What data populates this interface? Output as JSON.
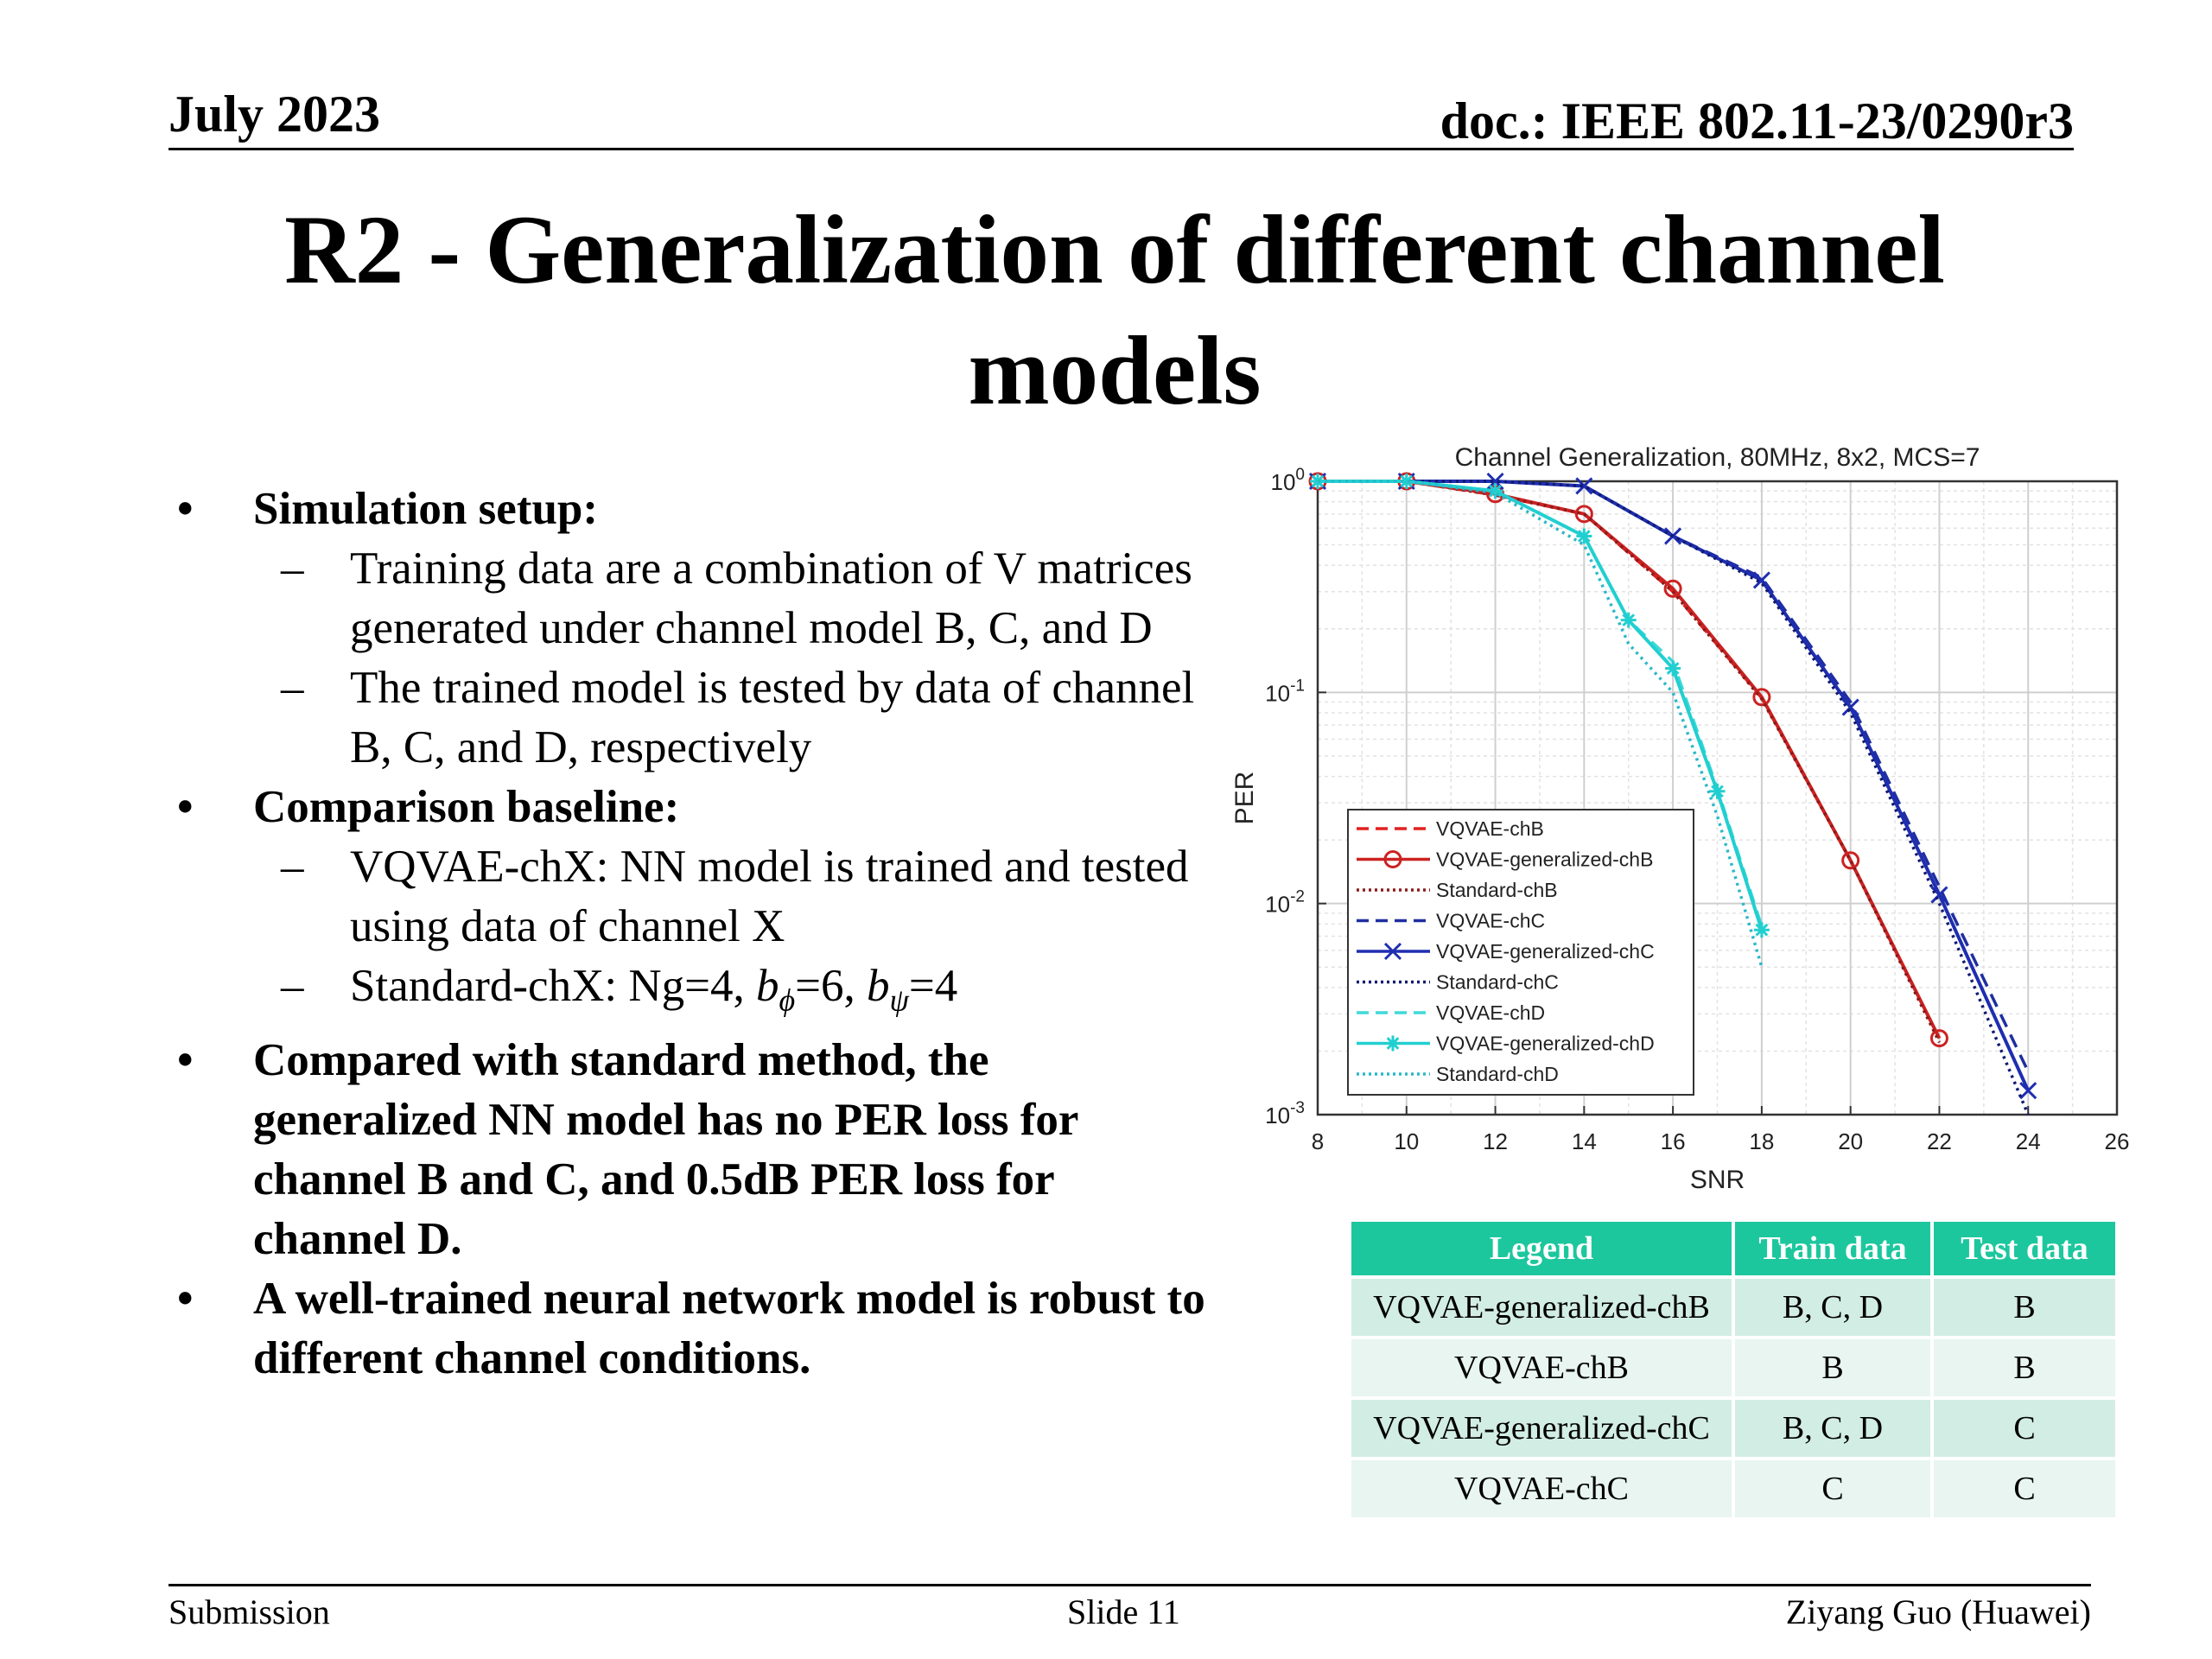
{
  "header": {
    "date": "July 2023",
    "doc": "doc.: IEEE 802.11-23/0290r3"
  },
  "title": "R2 - Generalization of different channel models",
  "bullets": {
    "b1": "Simulation setup:",
    "b1_s1": "Training data are a combination of V matrices generated under channel model B, C, and D",
    "b1_s2": "The trained model is tested by data of channel B, C, and D, respectively",
    "b2": "Comparison baseline:",
    "b2_s1": "VQVAE-chX: NN model is trained and tested using data of channel X",
    "b2_s2_prefix": "Standard-chX: Ng=4,",
    "b2_s2_phi": "=6,",
    "b2_s2_psi": "=4",
    "b3": "Compared with standard method, the generalized NN model has no PER loss for channel B and C, and 0.5dB PER loss for channel D.",
    "b4": "A well-trained neural network model is robust to different channel conditions."
  },
  "chart_data": {
    "type": "line",
    "title": "Channel Generalization, 80MHz, 8x2, MCS=7",
    "xlabel": "SNR",
    "ylabel": "PER",
    "xlim": [
      8,
      26
    ],
    "ylim": [
      0.001,
      1
    ],
    "yscale": "log",
    "xticks": [
      "8",
      "10",
      "12",
      "14",
      "16",
      "18",
      "20",
      "22",
      "24",
      "26"
    ],
    "yticks": [
      {
        "base": "10",
        "exp": "0"
      },
      {
        "base": "10",
        "exp": "-1"
      },
      {
        "base": "10",
        "exp": "-2"
      },
      {
        "base": "10",
        "exp": "-3"
      }
    ],
    "grid": true,
    "legend_position": "bottom-left",
    "series": [
      {
        "name": "VQVAE-chB",
        "color": "#e32020",
        "style": "dashed",
        "marker": "none",
        "x": [
          8,
          10,
          12,
          14,
          16,
          18,
          20,
          22
        ],
        "y": [
          1,
          1,
          0.86,
          0.7,
          0.3,
          0.094,
          0.016,
          0.0023
        ]
      },
      {
        "name": "VQVAE-generalized-chB",
        "color": "#cc2222",
        "style": "solid",
        "marker": "circle",
        "x": [
          8,
          10,
          12,
          14,
          16,
          18,
          20,
          22
        ],
        "y": [
          1,
          1,
          0.87,
          0.7,
          0.31,
          0.095,
          0.016,
          0.0023
        ]
      },
      {
        "name": "Standard-chB",
        "color": "#8b1a1a",
        "style": "dotted",
        "marker": "none",
        "x": [
          8,
          10,
          12,
          14,
          16,
          18,
          20,
          22
        ],
        "y": [
          1,
          1,
          0.86,
          0.7,
          0.3,
          0.093,
          0.016,
          0.0022
        ]
      },
      {
        "name": "VQVAE-chC",
        "color": "#1f2ea0",
        "style": "dashed",
        "marker": "none",
        "x": [
          8,
          10,
          12,
          14,
          16,
          18,
          20,
          22,
          24
        ],
        "y": [
          1,
          1,
          1,
          0.95,
          0.55,
          0.35,
          0.09,
          0.012,
          0.0016
        ]
      },
      {
        "name": "VQVAE-generalized-chC",
        "color": "#1f2eb0",
        "style": "solid",
        "marker": "x",
        "x": [
          8,
          10,
          12,
          14,
          16,
          18,
          20,
          22,
          24
        ],
        "y": [
          1,
          1,
          1,
          0.95,
          0.55,
          0.34,
          0.085,
          0.011,
          0.0013
        ]
      },
      {
        "name": "Standard-chC",
        "color": "#101a70",
        "style": "dotted",
        "marker": "none",
        "x": [
          8,
          10,
          12,
          14,
          16,
          18,
          20,
          22,
          24
        ],
        "y": [
          1,
          1,
          1,
          0.95,
          0.55,
          0.33,
          0.08,
          0.01,
          0.001
        ]
      },
      {
        "name": "VQVAE-chD",
        "color": "#3fd9d9",
        "style": "dashed",
        "marker": "none",
        "x": [
          8,
          10,
          12,
          14,
          15,
          16,
          17,
          18
        ],
        "y": [
          1,
          1,
          0.9,
          0.55,
          0.22,
          0.14,
          0.035,
          0.0078
        ]
      },
      {
        "name": "VQVAE-generalized-chD",
        "color": "#22cfd0",
        "style": "solid",
        "marker": "star",
        "x": [
          8,
          10,
          12,
          14,
          15,
          16,
          17,
          18
        ],
        "y": [
          1,
          1,
          0.9,
          0.55,
          0.22,
          0.13,
          0.034,
          0.0075
        ]
      },
      {
        "name": "Standard-chD",
        "color": "#2ab8c8",
        "style": "dotted",
        "marker": "none",
        "x": [
          8,
          10,
          12,
          14,
          15,
          16,
          17,
          18
        ],
        "y": [
          1,
          1,
          0.88,
          0.5,
          0.17,
          0.1,
          0.026,
          0.005
        ]
      }
    ]
  },
  "table": {
    "headers": [
      "Legend",
      "Train data",
      "Test data"
    ],
    "rows": [
      [
        "VQVAE-generalized-chB",
        "B, C, D",
        "B"
      ],
      [
        "VQVAE-chB",
        "B",
        "B"
      ],
      [
        "VQVAE-generalized-chC",
        "B, C, D",
        "C"
      ],
      [
        "VQVAE-chC",
        "C",
        "C"
      ]
    ]
  },
  "footer": {
    "left": "Submission",
    "center": "Slide 11",
    "right": "Ziyang Guo (Huawei)"
  }
}
